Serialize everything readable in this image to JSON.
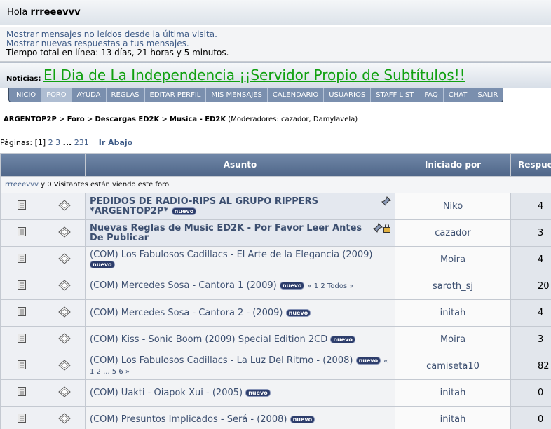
{
  "header": {
    "greeting": "Hola",
    "user": "rrreeevvv"
  },
  "info": {
    "lines": [
      "Mostrar mensajes no leídos desde la última visita.",
      "Mostrar nuevas respuestas a tus mensajes.",
      "Tiempo total en línea: 13 días, 21 horas y 5 minutos."
    ]
  },
  "news": {
    "label": "Noticias:",
    "text": "El Dia de La Independencia ¡¡Servidor Propio de Subtítulos!!"
  },
  "menu": {
    "items": [
      "INICIO",
      "FORO",
      "AYUDA",
      "REGLAS",
      "EDITAR PERFIL",
      "MIS MENSAJES",
      "CALENDARIO",
      "USUARIOS",
      "STAFF LIST",
      "FAQ",
      "CHAT",
      "SALIR"
    ],
    "active": 1
  },
  "breadcrumb": {
    "items": [
      "ARGENTOP2P",
      "Foro",
      "Descargas ED2K",
      "Musica - ED2K"
    ],
    "separator": ">",
    "moderators": "(Moderadores: cazador, Damylavela)"
  },
  "pagination": {
    "label": "Páginas:",
    "current": "[1]",
    "pages": [
      "2",
      "3"
    ],
    "ellipsis": "...",
    "last": "231",
    "go_down": "Ir Abajo"
  },
  "table": {
    "headers": [
      "Asunto",
      "Iniciado por",
      "Respuestas"
    ],
    "viewers": {
      "user": "rrreeevvv",
      "text": "y 0 Visitantes están viendo este foro."
    },
    "rows": [
      {
        "subject": "PEDIDOS DE RADIO-RIPS AL GRUPO RIPPERS *ARGENTOP2P*",
        "badge": "nuevo",
        "sticky": true,
        "pinned": true,
        "locked": false,
        "starter": "Niko",
        "replies": 4
      },
      {
        "subject": "Nuevas Reglas de Music ED2K - Por Favor Leer Antes De Publicar",
        "sticky": true,
        "pinned": true,
        "locked": true,
        "starter": "cazador",
        "replies": 3
      },
      {
        "subject": "(COM) Los Fabulosos Cadillacs - El Arte de la Elegancia (2009)",
        "badge": "nuevo",
        "starter": "Moira",
        "replies": 4
      },
      {
        "subject": "(COM) Mercedes Sosa - Cantora 1 (2009)",
        "badge": "nuevo",
        "pages": "« 1 2  Todos »",
        "starter": "saroth_sj",
        "replies": 20
      },
      {
        "subject": "(COM) Mercedes Sosa - Cantora 2 - (2009)",
        "badge": "nuevo",
        "starter": "initah",
        "replies": 4
      },
      {
        "subject": "(COM) Kiss - Sonic Boom (2009) Special Edition 2CD",
        "badge": "nuevo",
        "starter": "Moira",
        "replies": 3
      },
      {
        "subject": "(COM) Los Fabulosos Cadillacs - La Luz Del Ritmo - (2008)",
        "badge": "nuevo",
        "pages": "« 1 2 ... 5 6 »",
        "starter": "camiseta10",
        "replies": 82
      },
      {
        "subject": "(COM) Uakti - Oiapok Xui - (2005)",
        "badge": "nuevo",
        "starter": "initah",
        "replies": 0
      },
      {
        "subject": "(COM) Presuntos Implicados - Será - (2008)",
        "badge": "nuevo",
        "starter": "initah",
        "replies": 0
      }
    ]
  }
}
